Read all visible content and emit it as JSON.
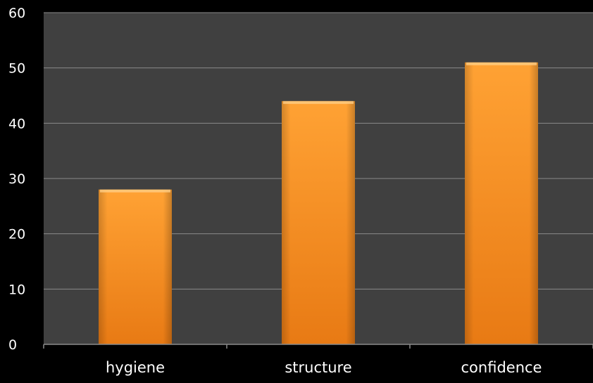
{
  "chart_data": {
    "type": "bar",
    "categories": [
      "hygiene",
      "structure",
      "confidence"
    ],
    "series": [
      {
        "values": [
          28,
          44,
          51
        ]
      }
    ],
    "yticks": [
      "0",
      "10",
      "20",
      "30",
      "40",
      "50",
      "60"
    ],
    "ylim": [
      0,
      60
    ],
    "grid": true,
    "legend": "none",
    "colors": {
      "background": "#000000",
      "plot_area": "#404040",
      "gridline": "#8a8a8a",
      "bar_light": "#ffa234",
      "bar_dark": "#e87a14",
      "text": "#ffffff"
    }
  }
}
